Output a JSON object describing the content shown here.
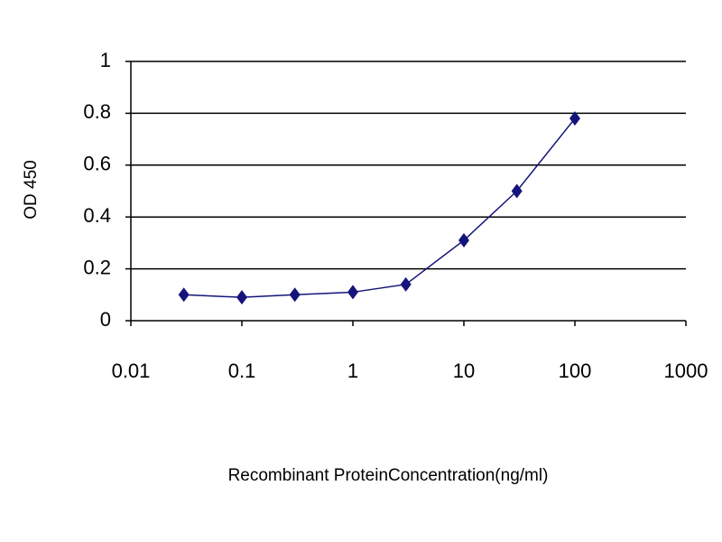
{
  "chart_data": {
    "type": "line",
    "x_label": "Recombinant ProteinConcentration(ng/ml)",
    "y_label": "OD 450",
    "x": [
      0.03,
      0.1,
      0.3,
      1,
      3,
      10,
      30,
      100
    ],
    "series": [
      {
        "color": "#14147a",
        "values": [
          0.1,
          0.09,
          0.1,
          0.11,
          0.14,
          0.31,
          0.5,
          0.78
        ]
      }
    ],
    "xscale": "log",
    "xlim": [
      0.01,
      1000
    ],
    "xticks": [
      0.01,
      0.1,
      1,
      10,
      100,
      1000
    ],
    "ylim": [
      0,
      1
    ],
    "yticks": [
      0,
      0.2,
      0.4,
      0.6,
      0.8,
      1
    ],
    "grid": true
  }
}
